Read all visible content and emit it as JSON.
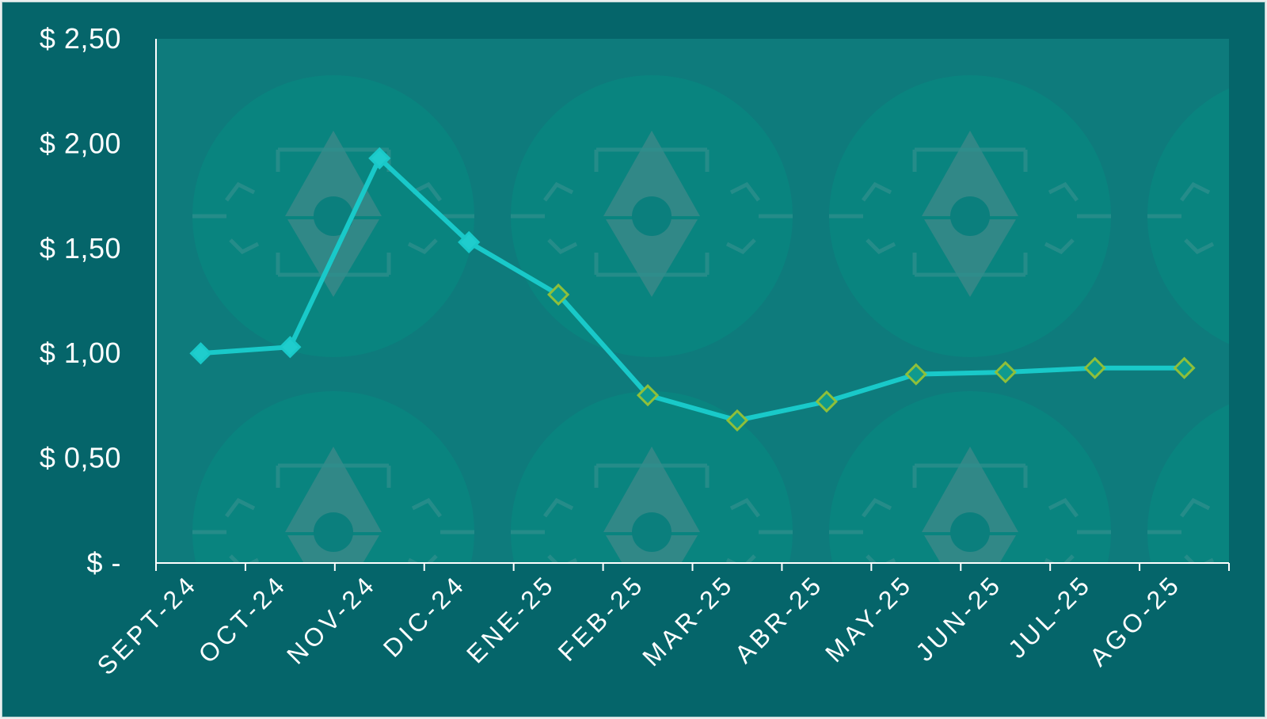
{
  "chart_data": {
    "type": "line",
    "categories": [
      "SEPT-24",
      "OCT-24",
      "NOV-24",
      "DIC-24",
      "ENE-25",
      "FEB-25",
      "MAR-25",
      "ABR-25",
      "MAY-25",
      "JUN-25",
      "JUL-25",
      "AGO-25"
    ],
    "series": [
      {
        "values": [
          1.0,
          1.03,
          1.93,
          1.53,
          1.28,
          0.8,
          0.68,
          0.77,
          0.9,
          0.91,
          0.93,
          0.93
        ]
      }
    ],
    "ylim": [
      0,
      2.5
    ],
    "y_ticks": [
      0,
      0.5,
      1.0,
      1.5,
      2.0,
      2.5
    ],
    "y_tick_labels": [
      "$ -",
      "$ 0,50",
      "$ 1,00",
      "$ 1,50",
      "$ 2,00",
      "$ 2,50"
    ],
    "title": "",
    "xlabel": "",
    "ylabel": "",
    "grid": false,
    "legend": "none",
    "colors": {
      "background": "#05656a",
      "plot_area": "#0e7b7c",
      "line": "#19c9c9",
      "marker_early_fill": "#1fcdcd",
      "marker_late_fill": "#0f9a8e",
      "marker_late_stroke": "#8fbf3a",
      "axis": "#ffffff",
      "watermark": "#148784"
    }
  }
}
